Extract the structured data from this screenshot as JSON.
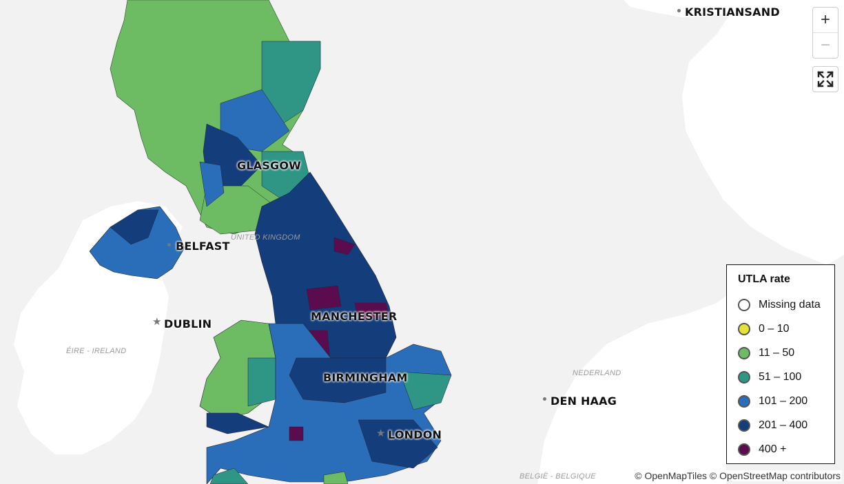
{
  "map": {
    "cities": [
      {
        "name": "KRISTIANSAND",
        "marker": "dot"
      },
      {
        "name": "GLASGOW",
        "marker": "none"
      },
      {
        "name": "BELFAST",
        "marker": "dot"
      },
      {
        "name": "DUBLIN",
        "marker": "star"
      },
      {
        "name": "MANCHESTER",
        "marker": "none"
      },
      {
        "name": "BIRMINGHAM",
        "marker": "none"
      },
      {
        "name": "DEN HAAG",
        "marker": "dot"
      },
      {
        "name": "LONDON",
        "marker": "star"
      }
    ],
    "country_labels": [
      "UNITED KINGDOM",
      "ÉIRE - IRELAND",
      "NEDERLAND",
      "BELGIË - BELGIQUE"
    ]
  },
  "controls": {
    "zoom_in": "+",
    "zoom_out": "−",
    "fullscreen_icon": "fullscreen-icon"
  },
  "legend": {
    "title": "UTLA rate",
    "items": [
      {
        "label": "Missing data",
        "color": "#ffffff"
      },
      {
        "label": "0 – 10",
        "color": "#e4e23a"
      },
      {
        "label": "11 – 50",
        "color": "#6dbb63"
      },
      {
        "label": "51 – 100",
        "color": "#2f9585"
      },
      {
        "label": "101 – 200",
        "color": "#2a6db8"
      },
      {
        "label": "201 – 400",
        "color": "#143d7c"
      },
      {
        "label": "400 +",
        "color": "#5b0c4e"
      }
    ]
  },
  "attribution": "© OpenMapTiles © OpenStreetMap contributors"
}
